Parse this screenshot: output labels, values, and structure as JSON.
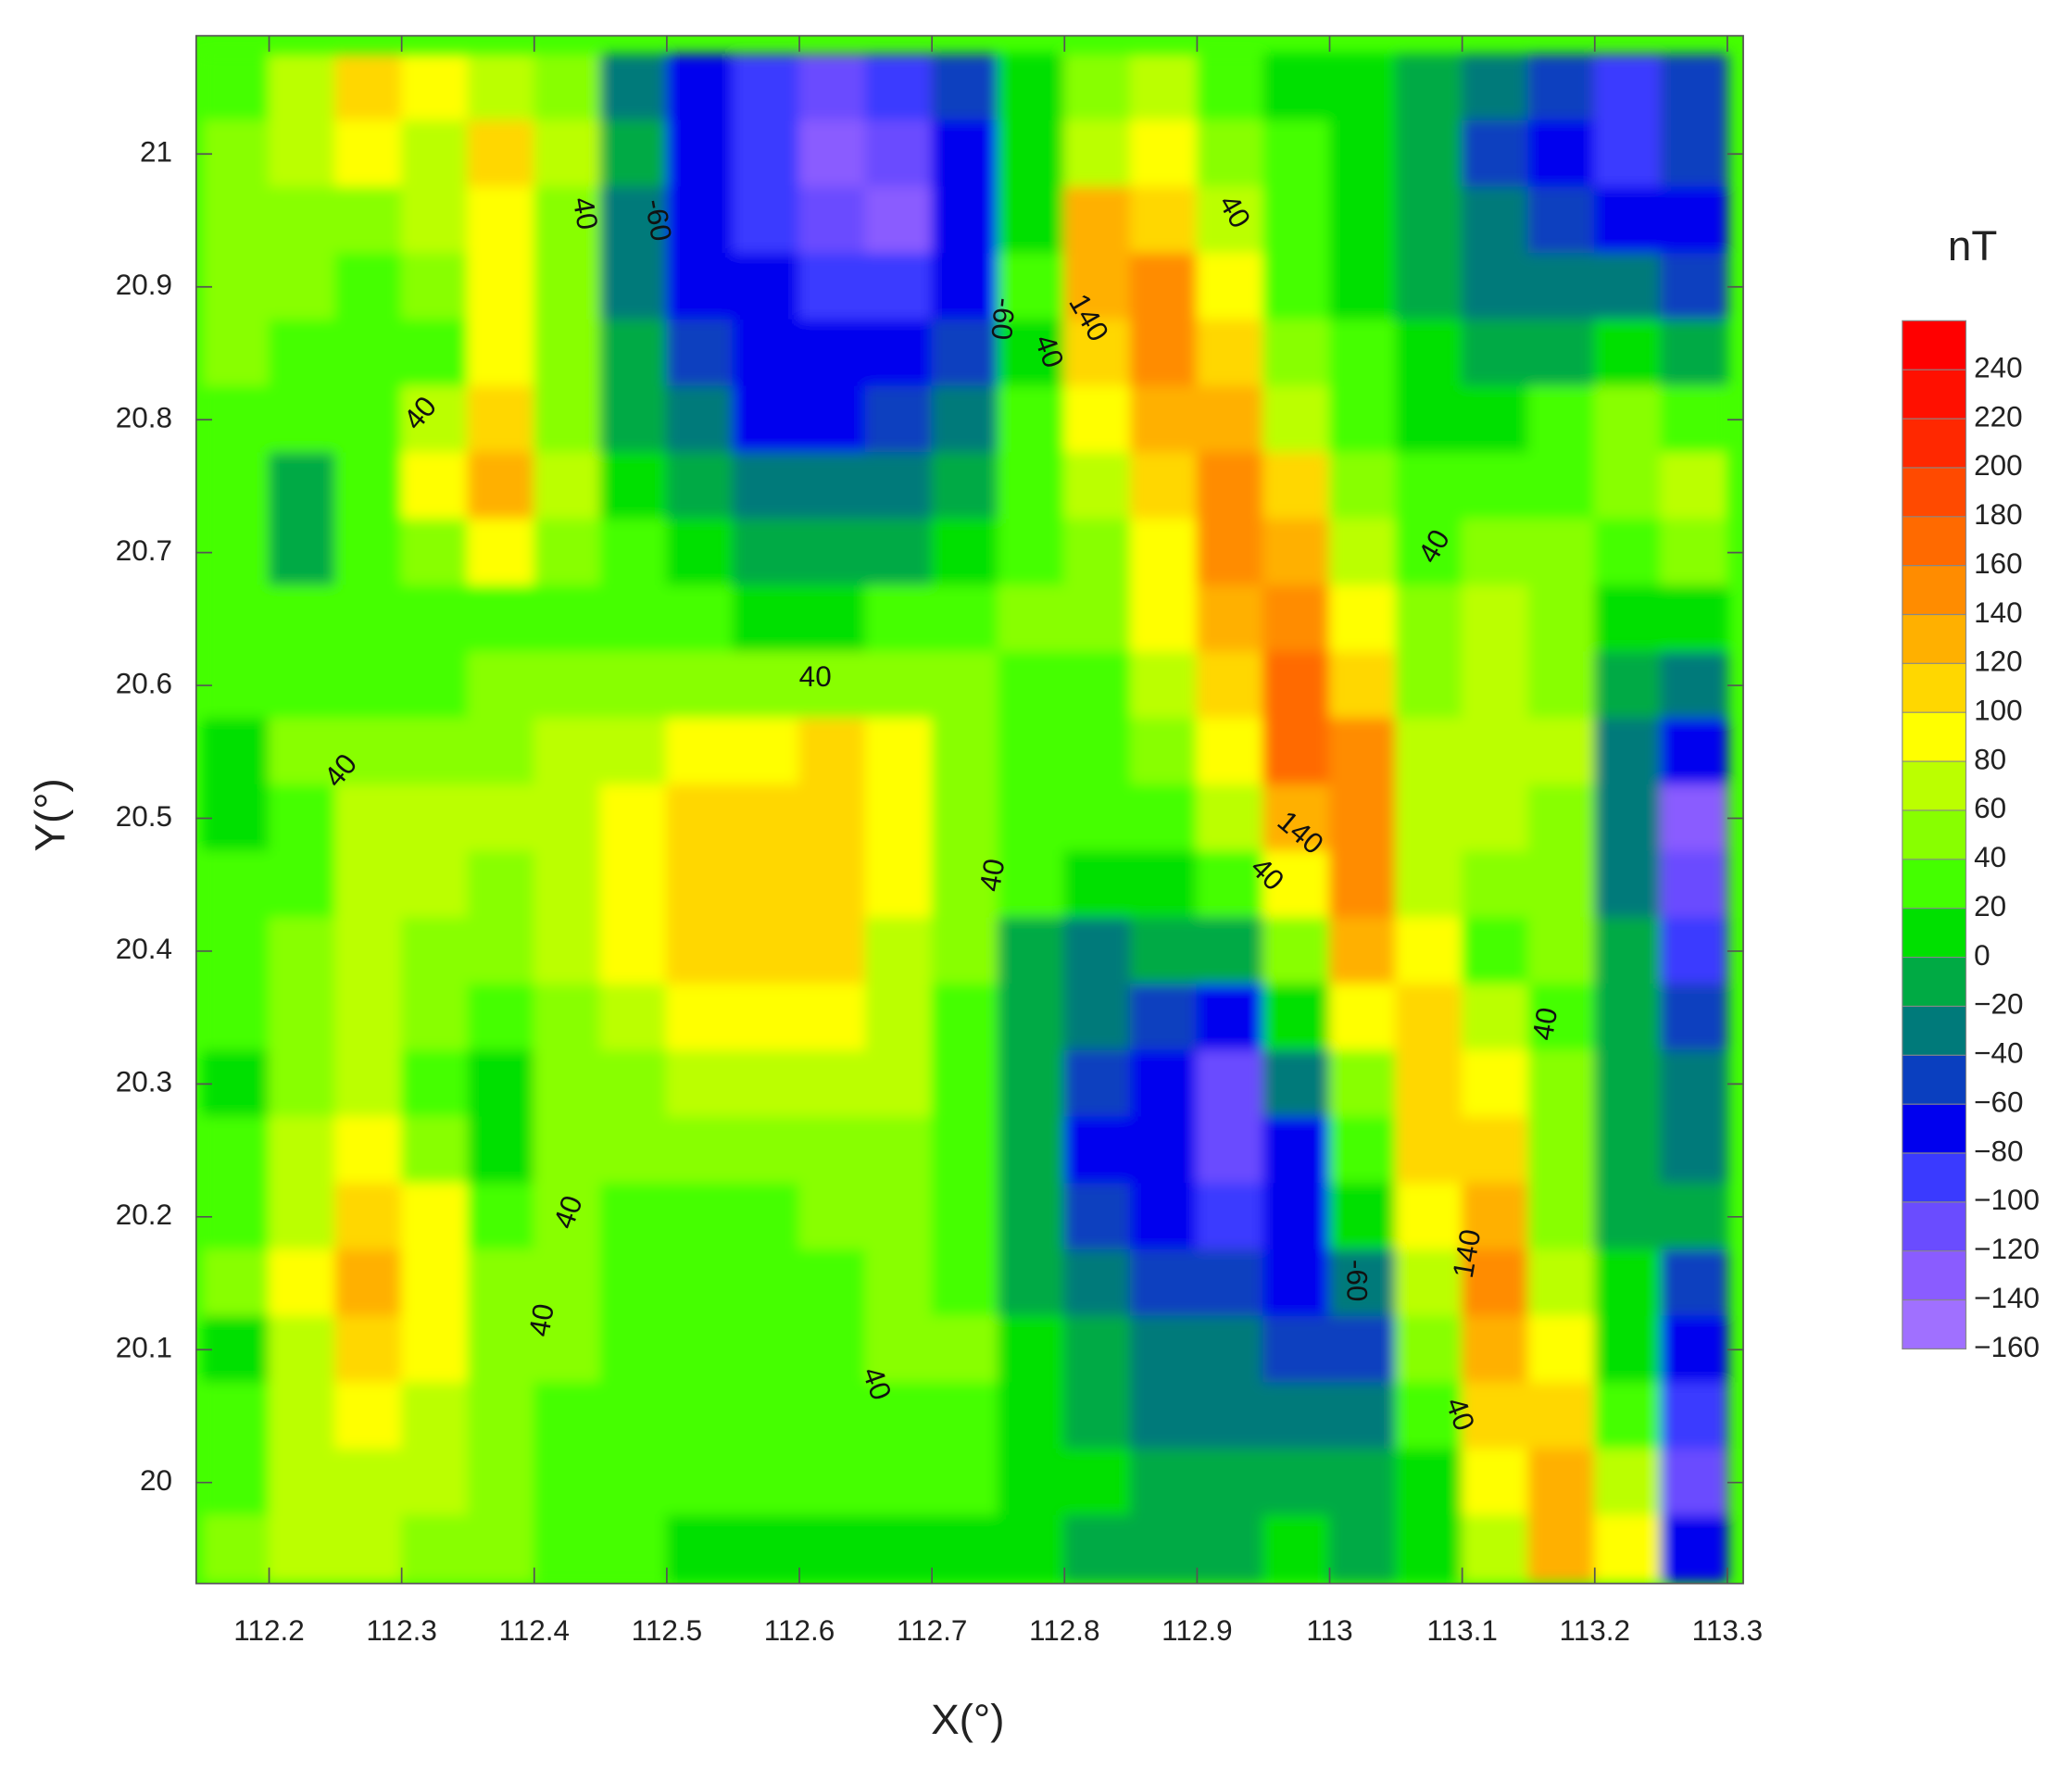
{
  "chart_data": {
    "type": "contour",
    "x_label": "X(°)",
    "y_label": "Y(°)",
    "colorbar_title": "nT",
    "xlim": [
      112.145,
      113.312
    ],
    "ylim": [
      19.924,
      21.089
    ],
    "xticks": [
      112.2,
      112.3,
      112.4,
      112.5,
      112.6,
      112.7,
      112.8,
      112.9,
      113,
      113.1,
      113.2,
      113.3
    ],
    "yticks": [
      20,
      20.1,
      20.2,
      20.3,
      20.4,
      20.5,
      20.6,
      20.7,
      20.8,
      20.9,
      21
    ],
    "x": [
      112.175,
      112.225,
      112.275,
      112.325,
      112.375,
      112.425,
      112.475,
      112.525,
      112.575,
      112.625,
      112.675,
      112.725,
      112.775,
      112.825,
      112.875,
      112.925,
      112.975,
      113.025,
      113.075,
      113.125,
      113.175,
      113.225,
      113.275
    ],
    "y": [
      21.05,
      21.0,
      20.95,
      20.9,
      20.85,
      20.8,
      20.75,
      20.7,
      20.65,
      20.6,
      20.55,
      20.5,
      20.45,
      20.4,
      20.35,
      20.3,
      20.25,
      20.2,
      20.15,
      20.1,
      20.05,
      20.0,
      19.95
    ],
    "z": [
      [
        30,
        60,
        110,
        80,
        70,
        40,
        -30,
        -80,
        -100,
        -110,
        -100,
        -60,
        10,
        50,
        70,
        30,
        10,
        0,
        -20,
        -40,
        -60,
        -90,
        -50
      ],
      [
        40,
        70,
        80,
        70,
        100,
        60,
        -20,
        -70,
        -90,
        -130,
        -120,
        -80,
        0,
        70,
        90,
        40,
        20,
        0,
        -20,
        -50,
        -70,
        -90,
        -60
      ],
      [
        50,
        50,
        50,
        60,
        90,
        50,
        -30,
        -70,
        -90,
        -120,
        -140,
        -80,
        10,
        120,
        110,
        60,
        20,
        10,
        -20,
        -40,
        -60,
        -70,
        -70
      ],
      [
        50,
        40,
        20,
        50,
        80,
        40,
        -30,
        -80,
        -80,
        -100,
        -90,
        -70,
        20,
        130,
        150,
        80,
        30,
        10,
        -10,
        -30,
        -30,
        -30,
        -50
      ],
      [
        40,
        30,
        30,
        20,
        80,
        40,
        -20,
        -60,
        -80,
        -80,
        -80,
        -60,
        10,
        110,
        140,
        100,
        40,
        20,
        0,
        -20,
        -20,
        0,
        -20
      ],
      [
        30,
        20,
        30,
        60,
        100,
        50,
        -10,
        -40,
        -70,
        -70,
        -60,
        -40,
        20,
        90,
        120,
        120,
        60,
        30,
        10,
        10,
        30,
        40,
        20
      ],
      [
        20,
        -10,
        30,
        80,
        130,
        60,
        10,
        -20,
        -40,
        -40,
        -30,
        -20,
        20,
        70,
        100,
        140,
        100,
        50,
        20,
        20,
        30,
        40,
        70
      ],
      [
        20,
        -5,
        20,
        50,
        80,
        40,
        20,
        0,
        -20,
        -20,
        -10,
        10,
        30,
        50,
        90,
        140,
        120,
        60,
        30,
        40,
        40,
        20,
        50
      ],
      [
        20,
        20,
        20,
        30,
        30,
        30,
        30,
        20,
        10,
        10,
        20,
        30,
        40,
        40,
        80,
        120,
        150,
        90,
        40,
        60,
        50,
        10,
        0
      ],
      [
        30,
        30,
        30,
        30,
        40,
        40,
        50,
        50,
        40,
        40,
        50,
        40,
        30,
        30,
        60,
        100,
        160,
        110,
        50,
        70,
        50,
        -10,
        -40
      ],
      [
        10,
        40,
        50,
        50,
        50,
        60,
        70,
        80,
        90,
        100,
        80,
        50,
        30,
        20,
        40,
        80,
        160,
        140,
        60,
        70,
        60,
        -30,
        -80
      ],
      [
        10,
        30,
        60,
        60,
        60,
        60,
        90,
        110,
        110,
        110,
        90,
        50,
        30,
        20,
        30,
        60,
        130,
        150,
        70,
        60,
        50,
        -40,
        -130
      ],
      [
        20,
        30,
        60,
        60,
        50,
        60,
        90,
        110,
        110,
        100,
        80,
        50,
        30,
        0,
        10,
        30,
        90,
        140,
        70,
        50,
        40,
        -40,
        -120
      ],
      [
        30,
        50,
        60,
        50,
        40,
        60,
        80,
        110,
        100,
        100,
        70,
        40,
        -10,
        -30,
        -20,
        -10,
        50,
        120,
        80,
        30,
        40,
        -20,
        -90
      ],
      [
        30,
        50,
        60,
        40,
        20,
        50,
        70,
        80,
        90,
        90,
        60,
        30,
        -20,
        -40,
        -60,
        -80,
        10,
        80,
        110,
        60,
        30,
        -20,
        -60
      ],
      [
        10,
        50,
        70,
        30,
        10,
        40,
        50,
        60,
        60,
        70,
        60,
        30,
        -20,
        -60,
        -80,
        -110,
        -40,
        40,
        110,
        80,
        40,
        -20,
        -40
      ],
      [
        20,
        60,
        90,
        50,
        10,
        40,
        40,
        40,
        40,
        50,
        50,
        30,
        -20,
        -70,
        -80,
        -120,
        -70,
        20,
        100,
        100,
        40,
        -20,
        -30
      ],
      [
        30,
        70,
        110,
        80,
        30,
        40,
        30,
        30,
        20,
        40,
        40,
        20,
        -20,
        -60,
        -70,
        -100,
        -80,
        0,
        80,
        130,
        50,
        -20,
        -20
      ],
      [
        40,
        80,
        120,
        90,
        40,
        50,
        30,
        20,
        20,
        30,
        50,
        30,
        -10,
        -40,
        -50,
        -60,
        -80,
        -40,
        60,
        140,
        60,
        0,
        -50
      ],
      [
        10,
        70,
        110,
        80,
        50,
        40,
        20,
        20,
        20,
        30,
        40,
        40,
        0,
        -20,
        -30,
        -40,
        -60,
        -50,
        40,
        120,
        80,
        10,
        -80
      ],
      [
        30,
        60,
        80,
        70,
        50,
        30,
        20,
        20,
        30,
        30,
        30,
        30,
        10,
        -10,
        -30,
        -30,
        -30,
        -30,
        20,
        100,
        110,
        30,
        -100
      ],
      [
        30,
        60,
        70,
        60,
        50,
        30,
        20,
        20,
        20,
        20,
        20,
        20,
        10,
        0,
        -10,
        -20,
        -20,
        -20,
        10,
        80,
        130,
        60,
        -120
      ],
      [
        50,
        60,
        60,
        50,
        40,
        30,
        20,
        10,
        10,
        10,
        10,
        10,
        0,
        -10,
        -10,
        -10,
        0,
        -10,
        10,
        60,
        120,
        80,
        -80
      ]
    ],
    "colorbar": {
      "levels": [
        {
          "value": -160,
          "label": "−160"
        },
        {
          "value": -140,
          "label": "−140"
        },
        {
          "value": -120,
          "label": "−120"
        },
        {
          "value": -100,
          "label": "−100"
        },
        {
          "value": -80,
          "label": "−80"
        },
        {
          "value": -60,
          "label": "−60"
        },
        {
          "value": -40,
          "label": "−40"
        },
        {
          "value": -20,
          "label": "−20"
        },
        0,
        20,
        40,
        60,
        80,
        100,
        120,
        140,
        160,
        180,
        200,
        220,
        240
      ],
      "colors": [
        "#a070ff",
        "#8a5cff",
        "#6a4cff",
        "#3a3aff",
        "#0000ee",
        "#0a3fbf",
        "#007a7a",
        "#00aa44",
        "#00e000",
        "#44ff00",
        "#88ff00",
        "#bbff00",
        "#ffff00",
        "#ffd700",
        "#ffb000",
        "#ff8c00",
        "#ff6a00",
        "#ff4a00",
        "#ff2800",
        "#ff1000",
        "#ff0000"
      ]
    },
    "contour_labels": [
      {
        "text": "40",
        "x": 112.437,
        "y": 20.955
      },
      {
        "text": "-60",
        "x": 112.492,
        "y": 20.95
      },
      {
        "text": "-60",
        "x": 112.752,
        "y": 20.876
      },
      {
        "text": "140",
        "x": 112.817,
        "y": 20.876
      },
      {
        "text": "40",
        "x": 112.787,
        "y": 20.851
      },
      {
        "text": "40",
        "x": 112.927,
        "y": 20.956
      },
      {
        "text": "40",
        "x": 112.315,
        "y": 20.804
      },
      {
        "text": "40",
        "x": 113.08,
        "y": 20.704
      },
      {
        "text": "40",
        "x": 112.612,
        "y": 20.605
      },
      {
        "text": "40",
        "x": 112.255,
        "y": 20.535
      },
      {
        "text": "140",
        "x": 112.977,
        "y": 20.488
      },
      {
        "text": "40",
        "x": 112.952,
        "y": 20.457
      },
      {
        "text": "40",
        "x": 112.747,
        "y": 20.457
      },
      {
        "text": "40",
        "x": 113.164,
        "y": 20.345
      },
      {
        "text": "40",
        "x": 112.427,
        "y": 20.203
      },
      {
        "text": "40",
        "x": 112.407,
        "y": 20.122
      },
      {
        "text": "-60",
        "x": 113.019,
        "y": 20.152
      },
      {
        "text": "140",
        "x": 113.105,
        "y": 20.172
      },
      {
        "text": "40",
        "x": 112.657,
        "y": 20.074
      },
      {
        "text": "40",
        "x": 113.097,
        "y": 20.051
      }
    ]
  }
}
